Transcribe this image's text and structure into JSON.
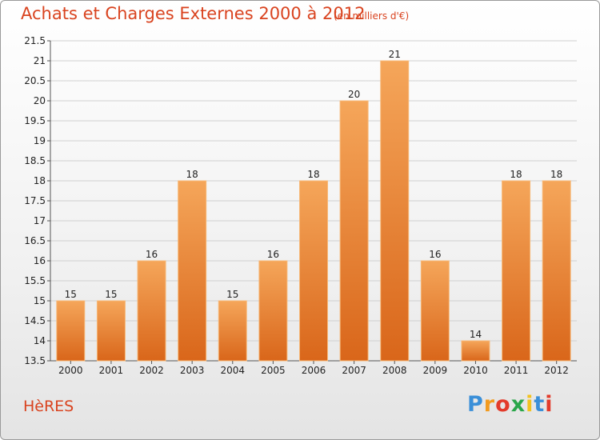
{
  "header": {
    "title": "Achats et Charges Externes 2000 à 2012",
    "unit": "(en milliers d'€)"
  },
  "footer": {
    "town": "HèRES",
    "logo": [
      "P",
      "r",
      "o",
      "x",
      "i",
      "t",
      "i"
    ],
    "logo_colors": [
      "#3a8fd8",
      "#f29b1f",
      "#e33b2b",
      "#2aa64a",
      "#f2c21f",
      "#3a8fd8",
      "#e33b2b"
    ]
  },
  "chart_data": {
    "type": "bar",
    "title": "Achats et Charges Externes 2000 à 2012",
    "subtitle": "(en milliers d'€)",
    "categories": [
      "2000",
      "2001",
      "2002",
      "2003",
      "2004",
      "2005",
      "2006",
      "2007",
      "2008",
      "2009",
      "2010",
      "2011",
      "2012"
    ],
    "values": [
      15,
      15,
      16,
      18,
      15,
      16,
      18,
      20,
      21,
      16,
      14,
      18,
      18
    ],
    "ylim": [
      13.5,
      21.5
    ],
    "yticks": [
      13.5,
      14,
      14.5,
      15,
      15.5,
      16,
      16.5,
      17,
      17.5,
      18,
      18.5,
      19,
      19.5,
      20,
      20.5,
      21,
      21.5
    ],
    "grid": true,
    "colors": {
      "bar_top": "#f5a65a",
      "bar_bottom": "#d9661a",
      "bar_edge": "#f7b978",
      "grid": "#d0d0d0",
      "text": "#d9431f"
    }
  }
}
